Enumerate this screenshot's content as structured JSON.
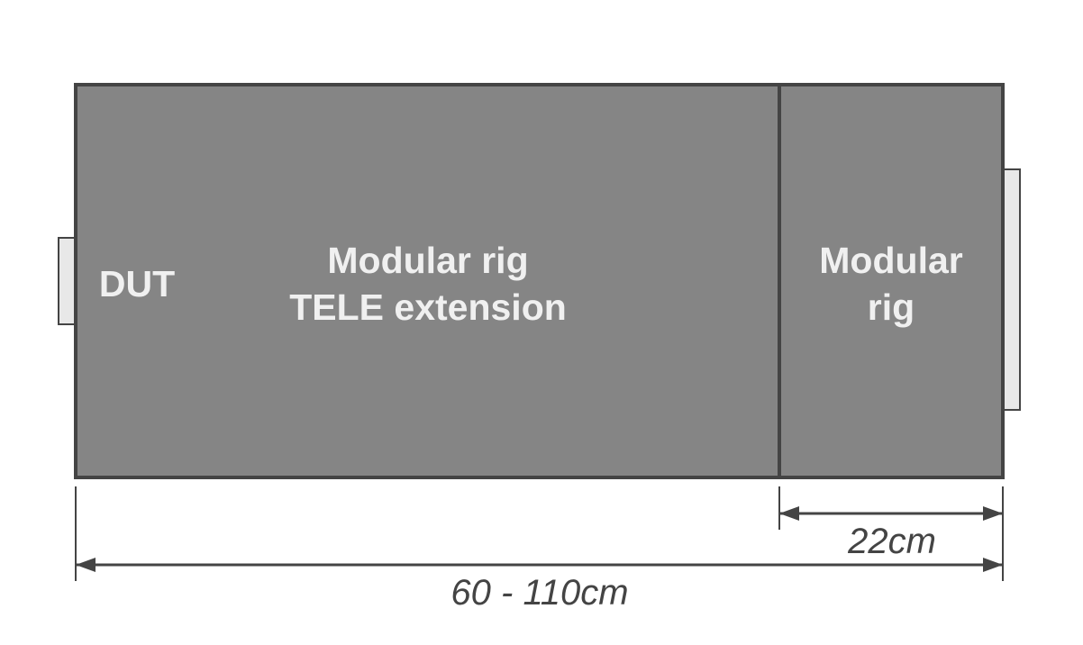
{
  "colors": {
    "box_fill": "#858585",
    "outline": "#444444",
    "tab_fill": "#e8e8e8",
    "label": "#f0f0f0",
    "dimension": "#444444"
  },
  "blocks": {
    "dut": {
      "label": "DUT"
    },
    "extension": {
      "line1": "Modular rig",
      "line2": "TELE extension"
    },
    "rig": {
      "line1": "Modular",
      "line2": "rig"
    }
  },
  "dimensions": {
    "rig_width": "22cm",
    "total_length": "60 - 110cm"
  }
}
